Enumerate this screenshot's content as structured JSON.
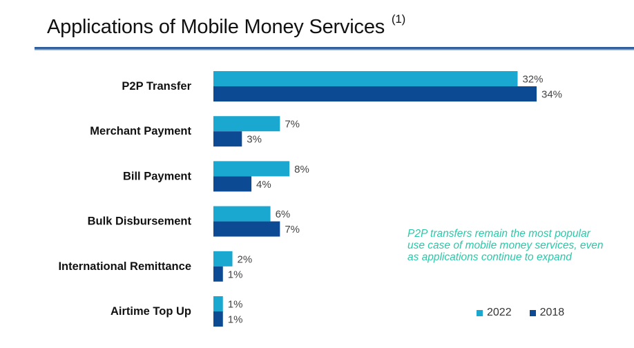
{
  "title": "Applications of Mobile Money Services",
  "title_note": "(1)",
  "note": "P2P transfers remain the most popular use case of mobile money services, even as applications continue to expand",
  "colors": {
    "s2022": "#1aa7d0",
    "s2018": "#0d4a94",
    "note": "#2bc7a8"
  },
  "chart_data": {
    "type": "bar",
    "orientation": "horizontal",
    "categories": [
      "P2P Transfer",
      "Merchant Payment",
      "Bill Payment",
      "Bulk Disbursement",
      "International Remittance",
      "Airtime Top Up"
    ],
    "series": [
      {
        "name": "2022",
        "values": [
          32,
          7,
          8,
          6,
          2,
          1
        ],
        "labels": [
          "32%",
          "7%",
          "8%",
          "6%",
          "2%",
          "1%"
        ]
      },
      {
        "name": "2018",
        "values": [
          34,
          3,
          4,
          7,
          1,
          1
        ],
        "labels": [
          "34%",
          "3%",
          "4%",
          "7%",
          "1%",
          "1%"
        ]
      }
    ],
    "unit": "%",
    "xlim": [
      0,
      34
    ],
    "legend": "bottom-right",
    "grid": false
  }
}
